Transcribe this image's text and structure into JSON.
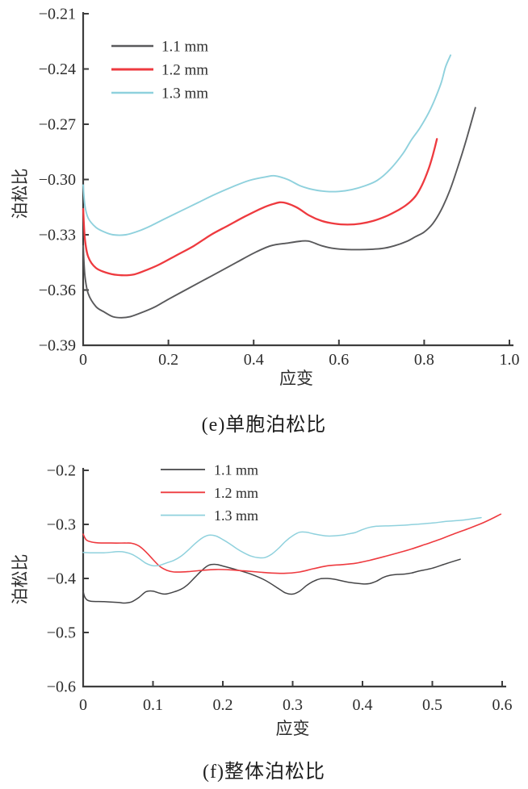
{
  "page": {
    "background": "#ffffff"
  },
  "chart_data": [
    {
      "id": "e",
      "type": "line",
      "title": "(e)单胞泊松比",
      "xlabel": "应变",
      "ylabel": "泊松比",
      "xlim": [
        0,
        1.0
      ],
      "ylim": [
        -0.39,
        -0.21
      ],
      "grid": false,
      "legend_position": "upper-left-inside",
      "x_ticks": [
        0,
        0.2,
        0.4,
        0.6,
        0.8,
        1.0
      ],
      "x_tick_labels": [
        "0",
        "0.2",
        "0.4",
        "0.6",
        "0.8",
        "1.0"
      ],
      "y_ticks": [
        -0.39,
        -0.36,
        -0.33,
        -0.3,
        -0.27,
        -0.24,
        -0.21
      ],
      "y_tick_labels": [
        "−0.39",
        "−0.36",
        "−0.33",
        "−0.30",
        "−0.27",
        "−0.24",
        "−0.21"
      ],
      "series": [
        {
          "name": "1.1 mm",
          "color": "#59595b",
          "width": 1.9,
          "points": [
            [
              0.0,
              -0.336
            ],
            [
              0.004,
              -0.352
            ],
            [
              0.012,
              -0.362
            ],
            [
              0.03,
              -0.369
            ],
            [
              0.05,
              -0.372
            ],
            [
              0.07,
              -0.3745
            ],
            [
              0.09,
              -0.375
            ],
            [
              0.11,
              -0.3745
            ],
            [
              0.14,
              -0.372
            ],
            [
              0.17,
              -0.369
            ],
            [
              0.2,
              -0.365
            ],
            [
              0.24,
              -0.36
            ],
            [
              0.28,
              -0.355
            ],
            [
              0.32,
              -0.35
            ],
            [
              0.36,
              -0.345
            ],
            [
              0.4,
              -0.34
            ],
            [
              0.44,
              -0.336
            ],
            [
              0.48,
              -0.3345
            ],
            [
              0.51,
              -0.3335
            ],
            [
              0.53,
              -0.3335
            ],
            [
              0.56,
              -0.336
            ],
            [
              0.59,
              -0.3375
            ],
            [
              0.62,
              -0.338
            ],
            [
              0.66,
              -0.338
            ],
            [
              0.7,
              -0.3375
            ],
            [
              0.73,
              -0.336
            ],
            [
              0.76,
              -0.3335
            ],
            [
              0.78,
              -0.331
            ],
            [
              0.8,
              -0.3285
            ],
            [
              0.82,
              -0.324
            ],
            [
              0.84,
              -0.3165
            ],
            [
              0.86,
              -0.306
            ],
            [
              0.88,
              -0.2925
            ],
            [
              0.9,
              -0.2775
            ],
            [
              0.92,
              -0.261
            ]
          ]
        },
        {
          "name": "1.2 mm",
          "color": "#ee3a3f",
          "width": 2.3,
          "points": [
            [
              0.0,
              -0.316
            ],
            [
              0.004,
              -0.332
            ],
            [
              0.012,
              -0.342
            ],
            [
              0.03,
              -0.348
            ],
            [
              0.06,
              -0.351
            ],
            [
              0.09,
              -0.352
            ],
            [
              0.12,
              -0.3515
            ],
            [
              0.15,
              -0.349
            ],
            [
              0.18,
              -0.346
            ],
            [
              0.22,
              -0.341
            ],
            [
              0.26,
              -0.336
            ],
            [
              0.3,
              -0.33
            ],
            [
              0.34,
              -0.325
            ],
            [
              0.38,
              -0.32
            ],
            [
              0.42,
              -0.3155
            ],
            [
              0.45,
              -0.313
            ],
            [
              0.47,
              -0.3125
            ],
            [
              0.5,
              -0.315
            ],
            [
              0.53,
              -0.3195
            ],
            [
              0.56,
              -0.3225
            ],
            [
              0.59,
              -0.324
            ],
            [
              0.62,
              -0.3245
            ],
            [
              0.65,
              -0.324
            ],
            [
              0.68,
              -0.3225
            ],
            [
              0.71,
              -0.32
            ],
            [
              0.74,
              -0.3165
            ],
            [
              0.76,
              -0.3135
            ],
            [
              0.78,
              -0.309
            ],
            [
              0.795,
              -0.303
            ],
            [
              0.81,
              -0.2945
            ],
            [
              0.82,
              -0.287
            ],
            [
              0.83,
              -0.278
            ]
          ]
        },
        {
          "name": "1.3 mm",
          "color": "#8fd1dd",
          "width": 1.9,
          "points": [
            [
              0.0,
              -0.303
            ],
            [
              0.004,
              -0.314
            ],
            [
              0.012,
              -0.321
            ],
            [
              0.03,
              -0.326
            ],
            [
              0.05,
              -0.3285
            ],
            [
              0.07,
              -0.33
            ],
            [
              0.1,
              -0.33
            ],
            [
              0.13,
              -0.328
            ],
            [
              0.16,
              -0.325
            ],
            [
              0.19,
              -0.3215
            ],
            [
              0.23,
              -0.317
            ],
            [
              0.27,
              -0.3125
            ],
            [
              0.31,
              -0.308
            ],
            [
              0.35,
              -0.304
            ],
            [
              0.39,
              -0.3005
            ],
            [
              0.43,
              -0.2985
            ],
            [
              0.45,
              -0.298
            ],
            [
              0.48,
              -0.3
            ],
            [
              0.51,
              -0.3035
            ],
            [
              0.54,
              -0.3055
            ],
            [
              0.57,
              -0.3065
            ],
            [
              0.6,
              -0.3065
            ],
            [
              0.63,
              -0.3055
            ],
            [
              0.66,
              -0.3035
            ],
            [
              0.69,
              -0.3005
            ],
            [
              0.72,
              -0.2945
            ],
            [
              0.75,
              -0.286
            ],
            [
              0.77,
              -0.2785
            ],
            [
              0.79,
              -0.272
            ],
            [
              0.81,
              -0.264
            ],
            [
              0.825,
              -0.2565
            ],
            [
              0.84,
              -0.2475
            ],
            [
              0.85,
              -0.239
            ],
            [
              0.862,
              -0.2325
            ]
          ]
        }
      ]
    },
    {
      "id": "f",
      "type": "line",
      "title": "(f)整体泊松比",
      "xlabel": "应变",
      "ylabel": "泊松比",
      "xlim": [
        0,
        0.6
      ],
      "ylim": [
        -0.6,
        -0.2
      ],
      "grid": false,
      "legend_position": "upper-center-inside",
      "x_ticks": [
        0,
        0.1,
        0.2,
        0.3,
        0.4,
        0.5,
        0.6
      ],
      "x_tick_labels": [
        "0",
        "0.1",
        "0.2",
        "0.3",
        "0.4",
        "0.5",
        "0.6"
      ],
      "y_ticks": [
        -0.6,
        -0.5,
        -0.4,
        -0.3,
        -0.2
      ],
      "y_tick_labels": [
        "−0.6",
        "−0.5",
        "−0.4",
        "−0.3",
        "−0.2"
      ],
      "series": [
        {
          "name": "1.1 mm",
          "color": "#454547",
          "width": 1.5,
          "points": [
            [
              0.0,
              -0.424
            ],
            [
              0.003,
              -0.436
            ],
            [
              0.01,
              -0.442
            ],
            [
              0.03,
              -0.443
            ],
            [
              0.05,
              -0.4445
            ],
            [
              0.06,
              -0.4455
            ],
            [
              0.07,
              -0.443
            ],
            [
              0.08,
              -0.435
            ],
            [
              0.09,
              -0.4245
            ],
            [
              0.1,
              -0.4235
            ],
            [
              0.11,
              -0.4275
            ],
            [
              0.12,
              -0.4285
            ],
            [
              0.14,
              -0.42
            ],
            [
              0.15,
              -0.411
            ],
            [
              0.16,
              -0.398
            ],
            [
              0.17,
              -0.385
            ],
            [
              0.18,
              -0.3755
            ],
            [
              0.19,
              -0.374
            ],
            [
              0.2,
              -0.377
            ],
            [
              0.22,
              -0.384
            ],
            [
              0.24,
              -0.392
            ],
            [
              0.26,
              -0.403
            ],
            [
              0.28,
              -0.419
            ],
            [
              0.29,
              -0.427
            ],
            [
              0.3,
              -0.429
            ],
            [
              0.31,
              -0.4235
            ],
            [
              0.32,
              -0.413
            ],
            [
              0.33,
              -0.405
            ],
            [
              0.34,
              -0.4005
            ],
            [
              0.35,
              -0.4
            ],
            [
              0.36,
              -0.4015
            ],
            [
              0.38,
              -0.407
            ],
            [
              0.4,
              -0.41
            ],
            [
              0.41,
              -0.4095
            ],
            [
              0.42,
              -0.405
            ],
            [
              0.43,
              -0.398
            ],
            [
              0.44,
              -0.394
            ],
            [
              0.45,
              -0.3925
            ],
            [
              0.46,
              -0.392
            ],
            [
              0.47,
              -0.39
            ],
            [
              0.48,
              -0.3865
            ],
            [
              0.5,
              -0.381
            ],
            [
              0.52,
              -0.3725
            ],
            [
              0.54,
              -0.3645
            ]
          ]
        },
        {
          "name": "1.2 mm",
          "color": "#ee3a3f",
          "width": 1.6,
          "points": [
            [
              0.0,
              -0.318
            ],
            [
              0.004,
              -0.328
            ],
            [
              0.01,
              -0.332
            ],
            [
              0.02,
              -0.334
            ],
            [
              0.04,
              -0.3345
            ],
            [
              0.06,
              -0.3345
            ],
            [
              0.07,
              -0.335
            ],
            [
              0.08,
              -0.34
            ],
            [
              0.09,
              -0.351
            ],
            [
              0.1,
              -0.365
            ],
            [
              0.11,
              -0.378
            ],
            [
              0.12,
              -0.385
            ],
            [
              0.13,
              -0.388
            ],
            [
              0.15,
              -0.3875
            ],
            [
              0.17,
              -0.385
            ],
            [
              0.19,
              -0.3835
            ],
            [
              0.21,
              -0.384
            ],
            [
              0.23,
              -0.386
            ],
            [
              0.25,
              -0.388
            ],
            [
              0.27,
              -0.39
            ],
            [
              0.29,
              -0.3905
            ],
            [
              0.31,
              -0.388
            ],
            [
              0.33,
              -0.382
            ],
            [
              0.35,
              -0.3765
            ],
            [
              0.37,
              -0.3745
            ],
            [
              0.39,
              -0.372
            ],
            [
              0.41,
              -0.3665
            ],
            [
              0.43,
              -0.36
            ],
            [
              0.45,
              -0.353
            ],
            [
              0.47,
              -0.3455
            ],
            [
              0.49,
              -0.337
            ],
            [
              0.51,
              -0.328
            ],
            [
              0.53,
              -0.318
            ],
            [
              0.55,
              -0.3085
            ],
            [
              0.57,
              -0.2985
            ],
            [
              0.585,
              -0.2895
            ],
            [
              0.598,
              -0.281
            ]
          ]
        },
        {
          "name": "1.3 mm",
          "color": "#8fd1dd",
          "width": 1.5,
          "points": [
            [
              0.0,
              -0.352
            ],
            [
              0.01,
              -0.3525
            ],
            [
              0.03,
              -0.3525
            ],
            [
              0.05,
              -0.3505
            ],
            [
              0.06,
              -0.3515
            ],
            [
              0.07,
              -0.3555
            ],
            [
              0.08,
              -0.363
            ],
            [
              0.09,
              -0.372
            ],
            [
              0.1,
              -0.3765
            ],
            [
              0.11,
              -0.3755
            ],
            [
              0.12,
              -0.371
            ],
            [
              0.13,
              -0.3665
            ],
            [
              0.14,
              -0.359
            ],
            [
              0.15,
              -0.348
            ],
            [
              0.16,
              -0.336
            ],
            [
              0.17,
              -0.3255
            ],
            [
              0.18,
              -0.32
            ],
            [
              0.19,
              -0.3215
            ],
            [
              0.2,
              -0.328
            ],
            [
              0.21,
              -0.336
            ],
            [
              0.22,
              -0.345
            ],
            [
              0.23,
              -0.3525
            ],
            [
              0.24,
              -0.3585
            ],
            [
              0.25,
              -0.3615
            ],
            [
              0.26,
              -0.3615
            ],
            [
              0.27,
              -0.355
            ],
            [
              0.28,
              -0.344
            ],
            [
              0.29,
              -0.331
            ],
            [
              0.3,
              -0.321
            ],
            [
              0.31,
              -0.3145
            ],
            [
              0.32,
              -0.3145
            ],
            [
              0.33,
              -0.3175
            ],
            [
              0.35,
              -0.3215
            ],
            [
              0.37,
              -0.32
            ],
            [
              0.38,
              -0.3175
            ],
            [
              0.39,
              -0.315
            ],
            [
              0.4,
              -0.3095
            ],
            [
              0.41,
              -0.3055
            ],
            [
              0.42,
              -0.3035
            ],
            [
              0.44,
              -0.3025
            ],
            [
              0.46,
              -0.3015
            ],
            [
              0.47,
              -0.3005
            ],
            [
              0.48,
              -0.2995
            ],
            [
              0.5,
              -0.2975
            ],
            [
              0.52,
              -0.2945
            ],
            [
              0.54,
              -0.2925
            ],
            [
              0.55,
              -0.291
            ],
            [
              0.57,
              -0.2875
            ]
          ]
        }
      ]
    }
  ]
}
